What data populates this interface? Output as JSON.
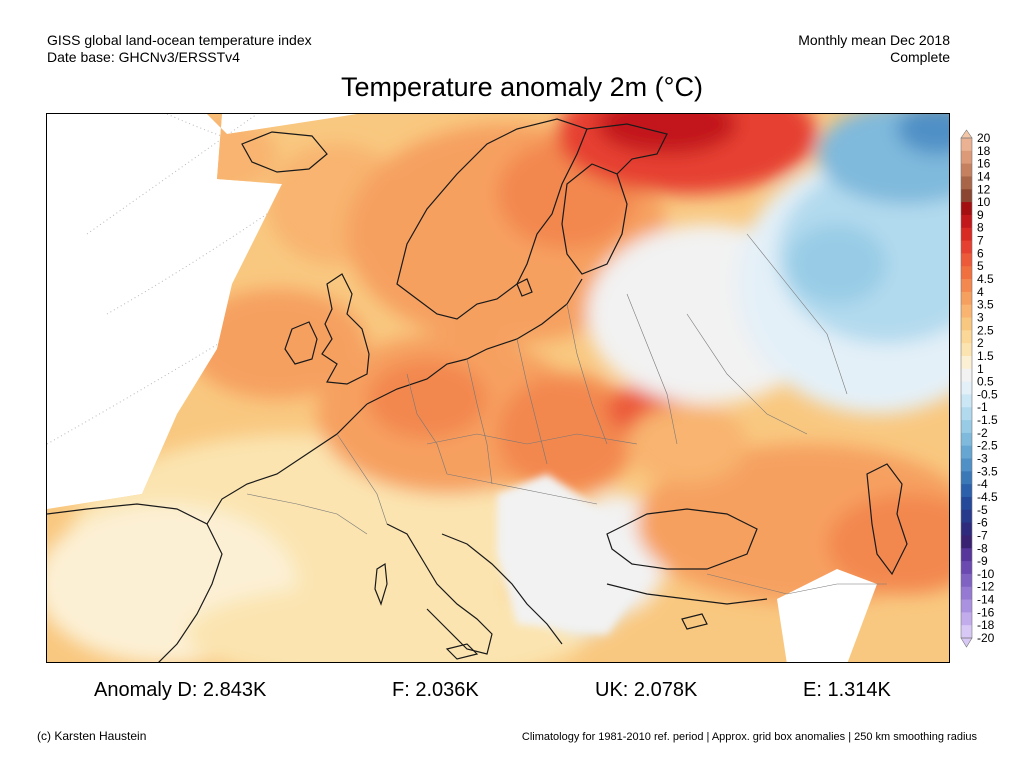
{
  "header": {
    "source_line1": "GISS global land-ocean temperature index",
    "source_line2": "Date base: GHCNv3/ERSSTv4",
    "period_line1": "Monthly mean Dec 2018",
    "period_line2": "Complete"
  },
  "title": "Temperature anomaly 2m (°C)",
  "legend": {
    "levels": [
      "20",
      "18",
      "16",
      "14",
      "12",
      "10",
      "9",
      "8",
      "7",
      "6",
      "5",
      "4.5",
      "4",
      "3.5",
      "3",
      "2.5",
      "2",
      "1.5",
      "1",
      "0.5",
      "-0.5",
      "-1",
      "-1.5",
      "-2",
      "-2.5",
      "-3",
      "-3.5",
      "-4",
      "-4.5",
      "-5",
      "-6",
      "-7",
      "-8",
      "-9",
      "-10",
      "-12",
      "-14",
      "-16",
      "-18",
      "-20"
    ],
    "colors": [
      "#f4c6a8",
      "#eab292",
      "#dc9a78",
      "#c5805f",
      "#a86548",
      "#8b4530",
      "#a40f12",
      "#c2181b",
      "#d82a22",
      "#e64030",
      "#ec5a3a",
      "#f07040",
      "#f38850",
      "#f6a060",
      "#f8b470",
      "#f9c880",
      "#fbd898",
      "#fbe4b0",
      "#fcf0d4",
      "#f2f2f2",
      "#e4f0f8",
      "#cbe6f4",
      "#b2daee",
      "#98cce6",
      "#7fb9dc",
      "#66a6d2",
      "#4f90c6",
      "#3b78b8",
      "#2c60aa",
      "#24489a",
      "#283a8c",
      "#2e2a7e",
      "#3a2272",
      "#56369a",
      "#6a4ab0",
      "#7f62c2",
      "#9579d2",
      "#ab92e0",
      "#c2acec",
      "#d8c8f6"
    ],
    "low_cap_color": "#d8c8f6",
    "high_cap_color": "#f4c6a8"
  },
  "stats": {
    "d": "Anomaly D: 2.843K",
    "f": "F: 2.036K",
    "uk": "UK: 2.078K",
    "e": "E: 1.314K"
  },
  "footer": {
    "credit": "(c) Karsten Haustein",
    "note": "Climatology for 1981-2010 ref. period | Approx. grid box anomalies | 250 km smoothing radius"
  },
  "map_colors": {
    "ocean_nodata": "#f4f4f4",
    "land_line": "#1a1a1a",
    "border_line": "#888888"
  }
}
